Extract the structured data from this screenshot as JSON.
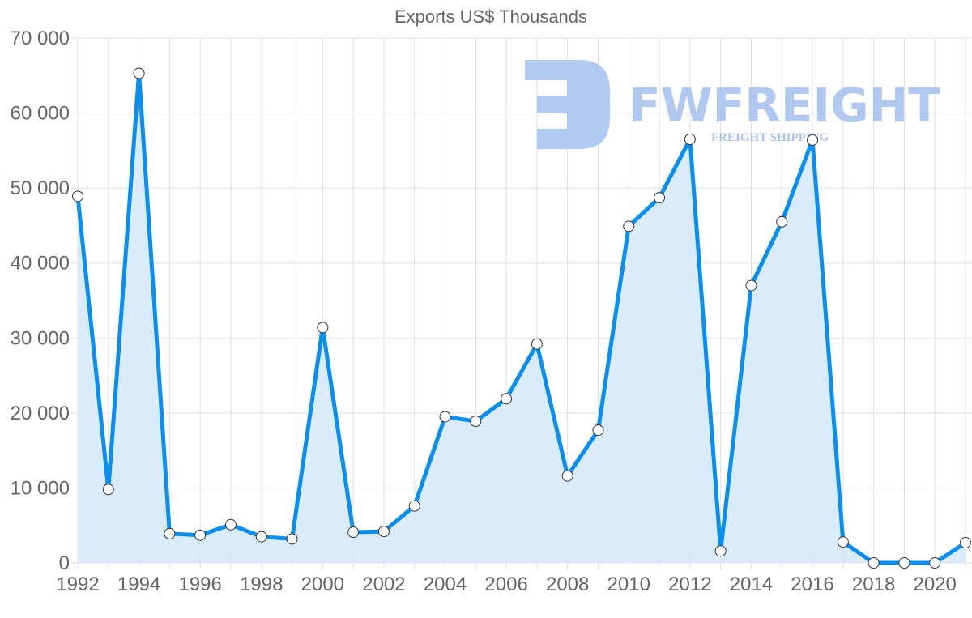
{
  "chart_data": {
    "type": "line",
    "title": "Exports US$ Thousands",
    "xlabel": "",
    "ylabel": "",
    "x": [
      1992,
      1993,
      1994,
      1995,
      1996,
      1997,
      1998,
      1999,
      2000,
      2001,
      2002,
      2003,
      2004,
      2005,
      2006,
      2007,
      2008,
      2009,
      2010,
      2011,
      2012,
      2013,
      2014,
      2015,
      2016,
      2017,
      2018,
      2019,
      2020,
      2021
    ],
    "series": [
      {
        "name": "Exports US$ Thousands",
        "values": [
          48900,
          9800,
          65300,
          3900,
          3700,
          5100,
          3500,
          3200,
          31400,
          4100,
          4200,
          7600,
          19500,
          18900,
          21900,
          29200,
          11600,
          17700,
          44900,
          48700,
          56500,
          1600,
          37000,
          45500,
          56400,
          2800,
          0,
          0,
          0,
          2700
        ],
        "color": "#0a8ef0",
        "fill": "#d6eafc"
      }
    ],
    "ylim": [
      0,
      70000
    ],
    "yticks": [
      "0",
      "10 000",
      "20 000",
      "30 000",
      "40 000",
      "50 000",
      "60 000",
      "70 000"
    ],
    "xticks": [
      "1992",
      "1994",
      "1996",
      "1998",
      "2000",
      "2002",
      "2004",
      "2006",
      "2008",
      "2010",
      "2012",
      "2014",
      "2016",
      "2018",
      "2020"
    ],
    "grid": true,
    "legend": "none",
    "filled_area": true
  },
  "watermark": {
    "brand": "FWFREIGHT",
    "tagline": "FREIGHT SHIPPING",
    "color": "#a9c4f0"
  }
}
